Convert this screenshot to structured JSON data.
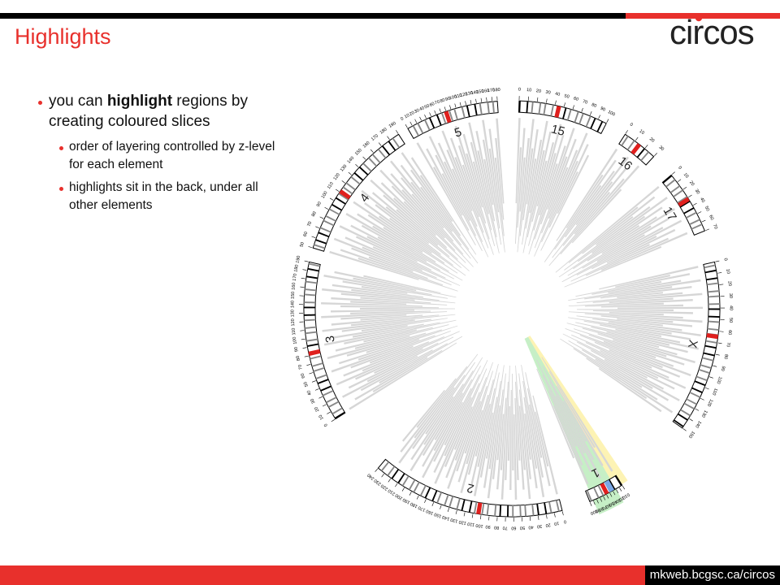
{
  "slide": {
    "title": "Highlights",
    "logo_text": "circos",
    "url": "mkweb.bcgsc.ca/circos"
  },
  "bullets": {
    "main_pre": "you can ",
    "main_bold": "highlight",
    "main_post": " regions by creating coloured slices",
    "sub": [
      "order of layering controlled by z-level for each element",
      "highlights sit in the back, under all other elements"
    ]
  },
  "diagram": {
    "chromosomes": [
      {
        "name": "1",
        "ticks": [
          "0",
          "10",
          "20",
          "30",
          "40",
          "50",
          "60",
          "70",
          "80",
          "90",
          "100"
        ]
      },
      {
        "name": "2",
        "ticks": [
          "0",
          "10",
          "20",
          "30",
          "40",
          "50",
          "60",
          "70",
          "80",
          "90",
          "100",
          "110",
          "120",
          "130",
          "140",
          "150",
          "160",
          "170",
          "180",
          "190",
          "200",
          "210",
          "220",
          "230",
          "240"
        ]
      },
      {
        "name": "3",
        "ticks": [
          "0",
          "10",
          "20",
          "30",
          "40",
          "50",
          "60",
          "70",
          "80",
          "90",
          "100",
          "110",
          "120",
          "130",
          "140",
          "150",
          "160",
          "170",
          "180",
          "190"
        ]
      },
      {
        "name": "4",
        "ticks": [
          "50",
          "60",
          "70",
          "80",
          "90",
          "100",
          "110",
          "120",
          "130",
          "140",
          "150",
          "160",
          "170",
          "180",
          "190"
        ]
      },
      {
        "name": "5",
        "ticks": [
          "0",
          "10",
          "20",
          "30",
          "40",
          "50",
          "60",
          "70",
          "80",
          "90",
          "100",
          "110",
          "120",
          "130",
          "140",
          "150",
          "160",
          "170",
          "180"
        ]
      },
      {
        "name": "15",
        "ticks": [
          "0",
          "10",
          "20",
          "30",
          "40",
          "50",
          "60",
          "70",
          "80",
          "90",
          "100"
        ]
      },
      {
        "name": "16",
        "ticks": [
          "0",
          "10",
          "20",
          "30"
        ]
      },
      {
        "name": "17",
        "ticks": [
          "0",
          "10",
          "20",
          "30",
          "40",
          "50",
          "60",
          "70"
        ]
      },
      {
        "name": "X",
        "ticks": [
          "0",
          "10",
          "20",
          "30",
          "40",
          "50",
          "60",
          "70",
          "80",
          "90",
          "100",
          "110",
          "120",
          "130",
          "140",
          "150"
        ]
      }
    ],
    "colors": {
      "slice": "#d6d6d6",
      "highlight_yellow": "#fdf3b4",
      "highlight_green": "#c6efc6",
      "centromere": "#e0201e",
      "variant": "#79a7e6"
    }
  }
}
